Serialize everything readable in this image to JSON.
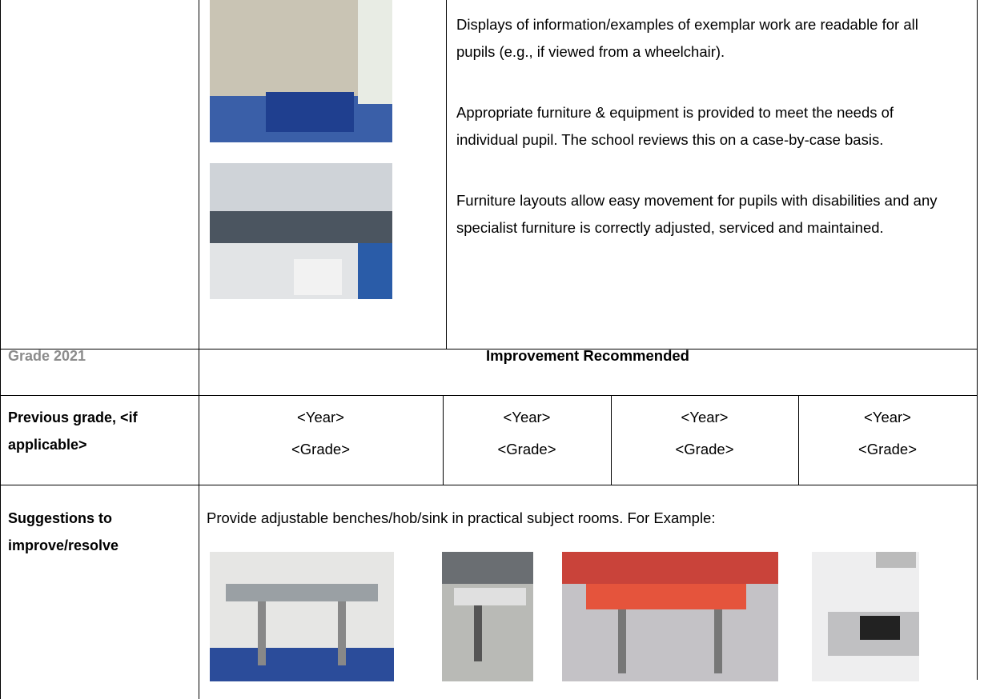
{
  "top_row": {
    "paragraphs": [
      "Displays of information/examples of exemplar work are readable for all pupils (e.g., if viewed from a wheelchair).",
      "Appropriate furniture & equipment is provided to meet the needs of individual pupil. The school reviews this on a case-by-case basis.",
      "Furniture layouts allow easy movement for pupils with disabilities and any specialist furniture is correctly adjusted, serviced and maintained."
    ]
  },
  "grade_row": {
    "label": "Grade 2021",
    "value": "Improvement Recommended"
  },
  "previous_row": {
    "label": "Previous grade, <if applicable>",
    "cells": [
      {
        "year": "<Year>",
        "grade": "<Grade>"
      },
      {
        "year": "<Year>",
        "grade": "<Grade>"
      },
      {
        "year": "<Year>",
        "grade": "<Grade>"
      },
      {
        "year": "<Year>",
        "grade": "<Grade>"
      }
    ]
  },
  "suggestions_row": {
    "label": "Suggestions to improve/resolve",
    "text": "Provide adjustable benches/hob/sink in practical subject rooms. For Example:"
  }
}
